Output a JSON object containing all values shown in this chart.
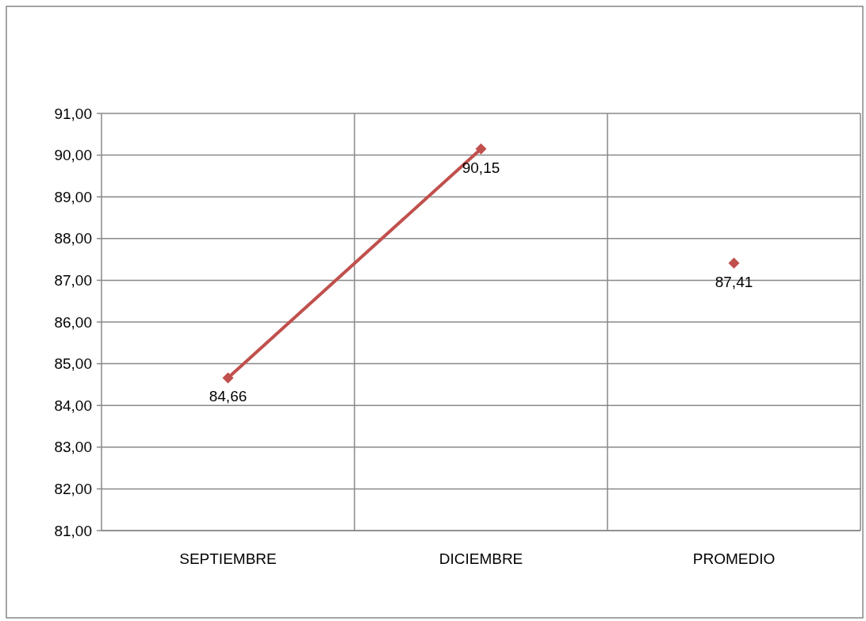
{
  "chart_data": {
    "type": "line",
    "categories": [
      "SEPTIEMBRE",
      "DICIEMBRE",
      "PROMEDIO"
    ],
    "series": [
      {
        "color": "#c0504d",
        "values": [
          84.66,
          90.15,
          null
        ],
        "value_labels": [
          "84,66",
          "90,15",
          null
        ]
      },
      {
        "color": "#c0504d",
        "values": [
          null,
          null,
          87.41
        ],
        "value_labels": [
          null,
          null,
          "87,41"
        ]
      }
    ],
    "ylim": [
      81,
      91
    ],
    "yticks": [
      {
        "value": 81,
        "label": "81,00"
      },
      {
        "value": 82,
        "label": "82,00"
      },
      {
        "value": 83,
        "label": "83,00"
      },
      {
        "value": 84,
        "label": "84,00"
      },
      {
        "value": 85,
        "label": "85,00"
      },
      {
        "value": 86,
        "label": "86,00"
      },
      {
        "value": 87,
        "label": "87,00"
      },
      {
        "value": 88,
        "label": "88,00"
      },
      {
        "value": 89,
        "label": "89,00"
      },
      {
        "value": 90,
        "label": "90,00"
      },
      {
        "value": 91,
        "label": "91,00"
      }
    ],
    "grid": true,
    "marker": "diamond",
    "line_style": "solid"
  }
}
